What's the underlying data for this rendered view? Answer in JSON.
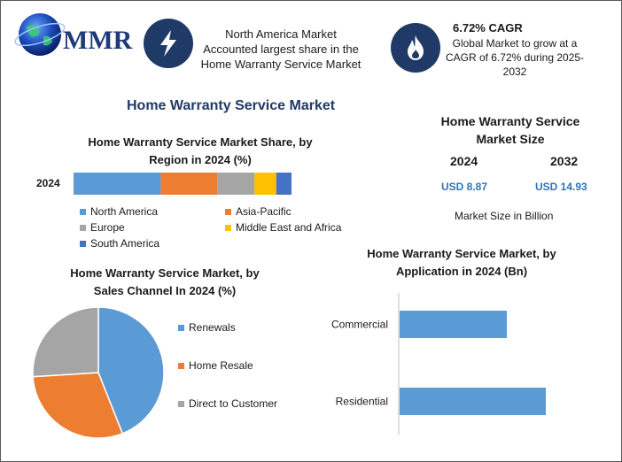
{
  "logo": {
    "text": "MMR"
  },
  "highlights": [
    {
      "icon": "lightning-icon",
      "lines": [
        "North America Market",
        "Accounted largest share in the",
        "Home Warranty Service Market"
      ]
    },
    {
      "icon": "flame-icon",
      "title": "6.72% CAGR",
      "lines": [
        "Global Market to grow at a",
        "CAGR of 6.72% during 2025-",
        "2032"
      ]
    }
  ],
  "main_title": "Home Warranty Service Market",
  "market_size": {
    "title_lines": [
      "Home Warranty Service",
      "Market Size"
    ],
    "year1": "2024",
    "value1": "USD 8.87",
    "year2": "2032",
    "value2": "USD 14.93",
    "note": "Market Size in Billion"
  },
  "colors": {
    "north_america": "#5b9bd5",
    "asia_pacific": "#ed7d31",
    "europe": "#a5a5a5",
    "mea": "#ffc000",
    "south_america": "#4472c4",
    "dark_navy": "#1f3a66"
  },
  "chart_data": [
    {
      "type": "bar",
      "orientation": "horizontal-stacked",
      "title_lines": [
        "Home Warranty Service Market Share, by",
        "Region in 2024 (%)"
      ],
      "categories": [
        "2024"
      ],
      "series": [
        {
          "name": "North America",
          "values": [
            40
          ]
        },
        {
          "name": "Asia-Pacific",
          "values": [
            26
          ]
        },
        {
          "name": "Europe",
          "values": [
            17
          ]
        },
        {
          "name": "Middle East and Africa",
          "values": [
            10
          ]
        },
        {
          "name": "South America",
          "values": [
            7
          ]
        }
      ],
      "legend": "bottom"
    },
    {
      "type": "pie",
      "title_lines": [
        "Home Warranty Service Market, by",
        "Sales Channel In 2024 (%)"
      ],
      "labels": [
        "Renewals",
        "Home Resale",
        "Direct to Customer"
      ],
      "values": [
        44,
        30,
        26
      ],
      "legend": "right"
    },
    {
      "type": "bar",
      "orientation": "horizontal",
      "title_lines": [
        "Home Warranty Service Market, by",
        "Application in 2024 (Bn)"
      ],
      "categories": [
        "Commercial",
        "Residential"
      ],
      "values": [
        3.3,
        4.5
      ],
      "xlim": [
        0,
        6
      ]
    }
  ]
}
